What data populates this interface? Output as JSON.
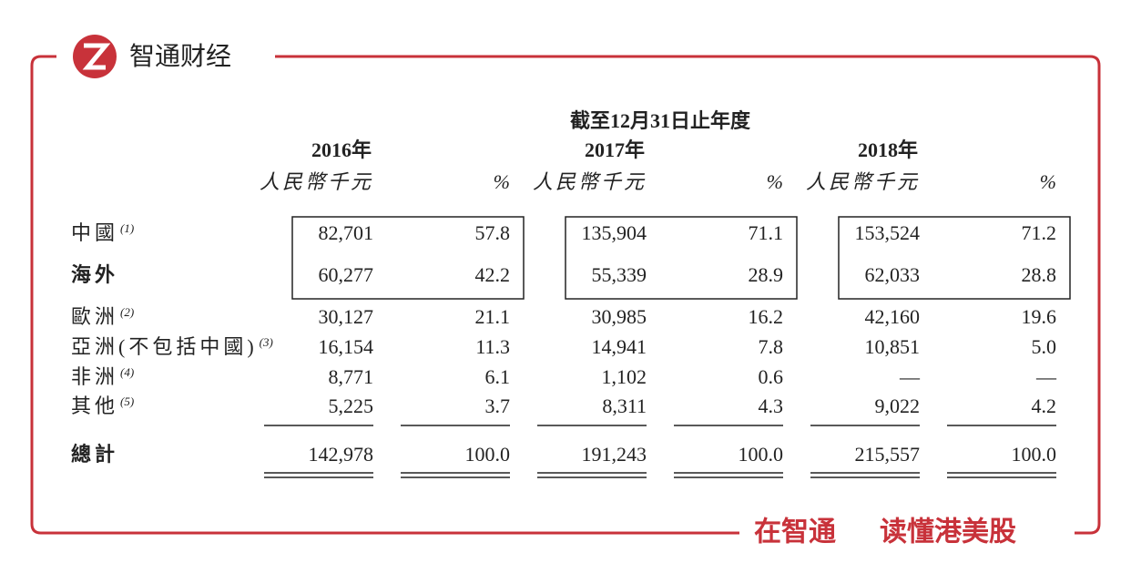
{
  "brand": "智通财经",
  "table": {
    "caption": "截至12月31日止年度",
    "years": [
      "2016年",
      "2017年",
      "2018年"
    ],
    "unit": "人民幣千元",
    "percent": "%",
    "rows": [
      {
        "label": "中國",
        "note": "(1)",
        "cells": [
          "82,701",
          "57.8",
          "135,904",
          "71.1",
          "153,524",
          "71.2"
        ]
      },
      {
        "label": "海外",
        "cells": [
          "60,277",
          "42.2",
          "55,339",
          "28.9",
          "62,033",
          "28.8"
        ]
      },
      {
        "label": "歐洲",
        "note": "(2)",
        "cells": [
          "30,127",
          "21.1",
          "30,985",
          "16.2",
          "42,160",
          "19.6"
        ]
      },
      {
        "label": "亞洲(不包括中國)",
        "note": "(3)",
        "cells": [
          "16,154",
          "11.3",
          "14,941",
          "7.8",
          "10,851",
          "5.0"
        ]
      },
      {
        "label": "非洲",
        "note": "(4)",
        "cells": [
          "8,771",
          "6.1",
          "1,102",
          "0.6",
          "—",
          "—"
        ]
      },
      {
        "label": "其他",
        "note": "(5)",
        "cells": [
          "5,225",
          "3.7",
          "8,311",
          "4.3",
          "9,022",
          "4.2"
        ]
      }
    ],
    "total": {
      "label": "總計",
      "cells": [
        "142,978",
        "100.0",
        "191,243",
        "100.0",
        "215,557",
        "100.0"
      ]
    }
  },
  "footer": [
    "在智通",
    "读懂港美股"
  ]
}
